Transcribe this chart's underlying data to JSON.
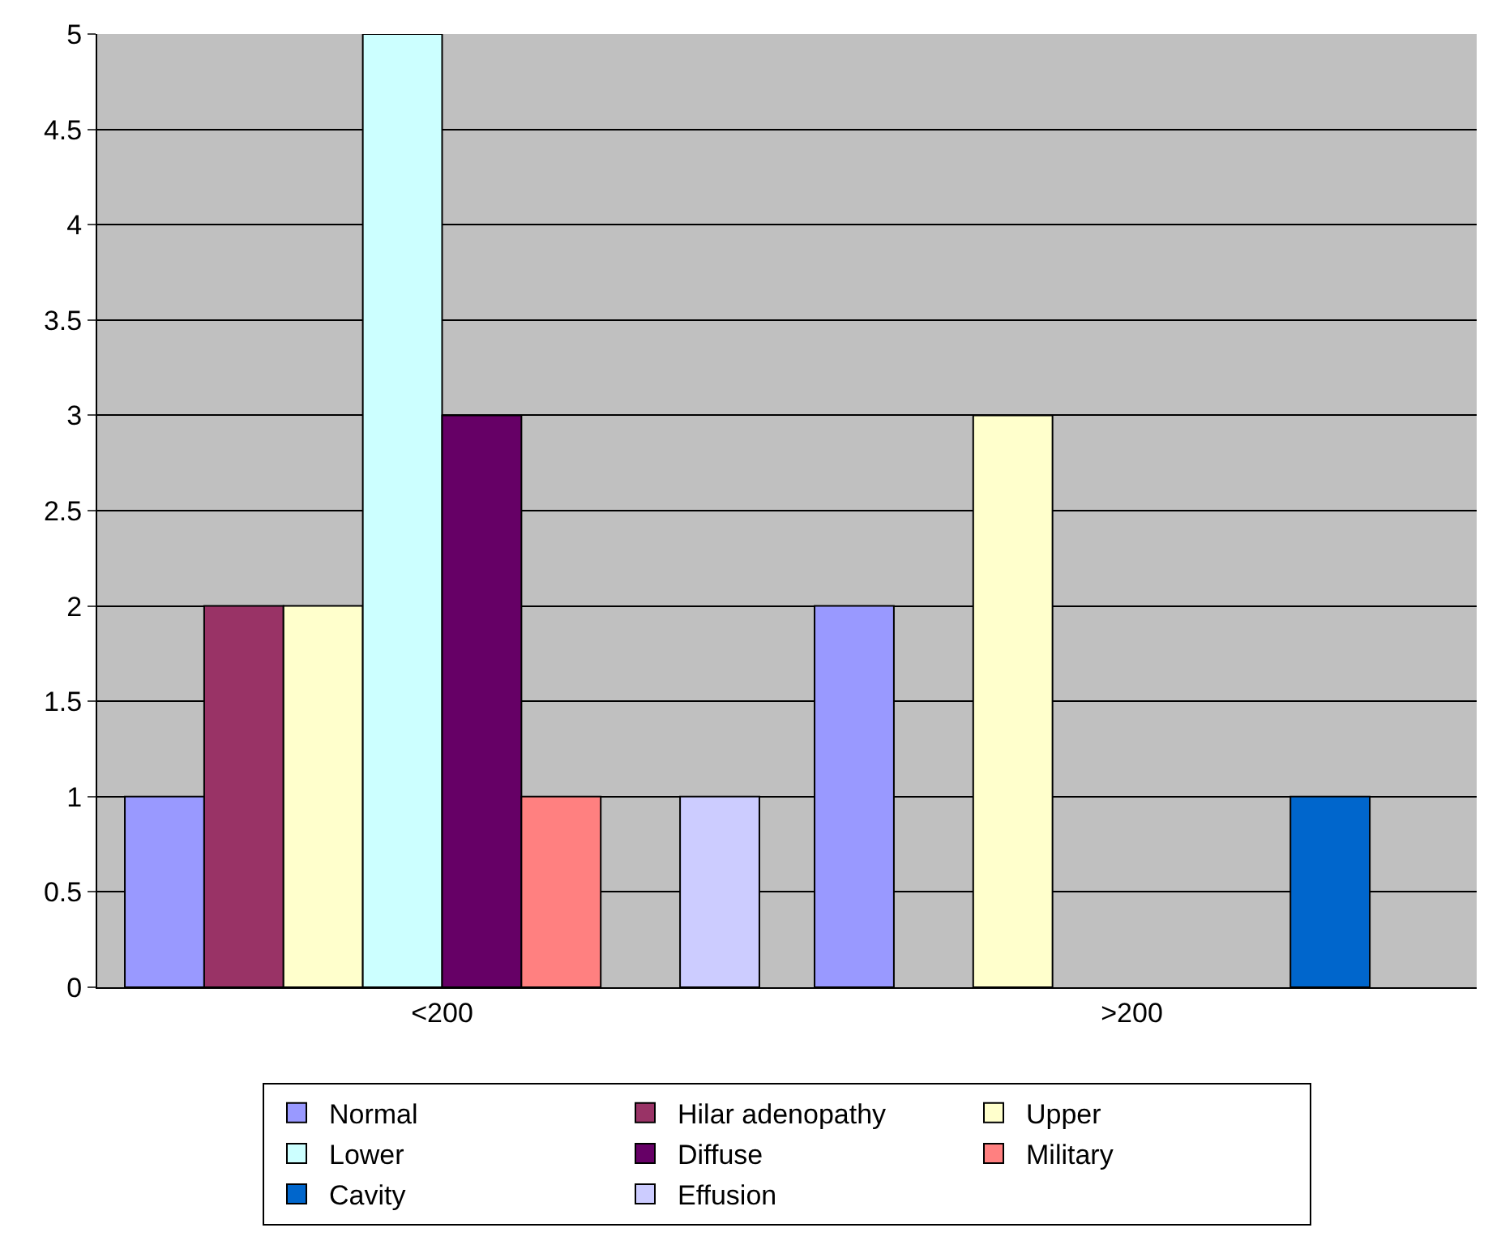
{
  "chart_data": {
    "type": "bar",
    "categories": [
      "<200",
      ">200"
    ],
    "series": [
      {
        "name": "Normal",
        "color": "#9999ff",
        "values": [
          1,
          2
        ]
      },
      {
        "name": "Hilar adenopathy",
        "color": "#993366",
        "values": [
          2,
          null
        ]
      },
      {
        "name": "Upper",
        "color": "#ffffcc",
        "values": [
          2,
          3
        ]
      },
      {
        "name": "Lower",
        "color": "#ccffff",
        "values": [
          5,
          null
        ]
      },
      {
        "name": "Diffuse",
        "color": "#660066",
        "values": [
          3,
          null
        ]
      },
      {
        "name": "Military",
        "color": "#ff8080",
        "values": [
          1,
          null
        ]
      },
      {
        "name": "Cavity",
        "color": "#0066cc",
        "values": [
          null,
          1
        ]
      },
      {
        "name": "Effusion",
        "color": "#ccccff",
        "values": [
          1,
          null
        ]
      }
    ],
    "ylim": [
      0,
      5
    ],
    "yticks": [
      0,
      0.5,
      1,
      1.5,
      2,
      2.5,
      3,
      3.5,
      4,
      4.5,
      5
    ],
    "grid": "y",
    "legend": "bottom"
  }
}
